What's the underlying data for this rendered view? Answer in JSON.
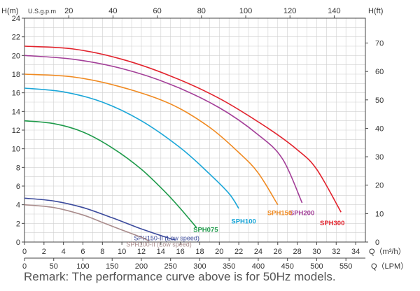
{
  "chart_data": {
    "type": "line",
    "title": "",
    "y_left": {
      "label": "H(m)",
      "range": [
        0,
        24
      ],
      "ticks": [
        0,
        2,
        4,
        6,
        8,
        10,
        12,
        14,
        16,
        18,
        20,
        22,
        24
      ]
    },
    "y_right": {
      "label": "H(ft)",
      "range": [
        0,
        78.74
      ],
      "ticks": [
        0,
        10,
        20,
        30,
        40,
        50,
        60,
        70
      ]
    },
    "x_top": {
      "label": "U.S.g.p.m",
      "ticks": [
        20,
        40,
        60,
        80,
        100,
        120,
        140
      ]
    },
    "x_bottom_1": {
      "label": "Q（m³/h）",
      "range": [
        0,
        35
      ],
      "ticks": [
        0,
        2,
        4,
        6,
        8,
        10,
        12,
        14,
        16,
        18,
        20,
        22,
        24,
        26,
        28,
        30,
        32,
        34
      ]
    },
    "x_bottom_2": {
      "label": "Q（LPM）",
      "ticks": [
        0,
        50,
        100,
        150,
        200,
        250,
        300,
        350,
        400,
        450,
        500,
        550
      ]
    },
    "grid": true,
    "series": [
      {
        "name": "SPH300",
        "color": "#e2232d",
        "points": [
          [
            0,
            21
          ],
          [
            5,
            20.7
          ],
          [
            10,
            19.6
          ],
          [
            15,
            17.8
          ],
          [
            20,
            15.4
          ],
          [
            25,
            12.2
          ],
          [
            28,
            9.9
          ],
          [
            30,
            7.8
          ],
          [
            32.5,
            3.2
          ]
        ],
        "label_at": [
          31.6,
          2.1
        ]
      },
      {
        "name": "SPH200",
        "color": "#a33f98",
        "points": [
          [
            0,
            20
          ],
          [
            5,
            19.6
          ],
          [
            10,
            18.6
          ],
          [
            15,
            16.9
          ],
          [
            20,
            14.4
          ],
          [
            24,
            11.5
          ],
          [
            26.5,
            8.9
          ],
          [
            28.5,
            4.2
          ]
        ],
        "label_at": [
          28.5,
          3.2
        ]
      },
      {
        "name": "SPH150",
        "color": "#f08a21",
        "points": [
          [
            0,
            18
          ],
          [
            5,
            17.7
          ],
          [
            10,
            16.6
          ],
          [
            15,
            14.8
          ],
          [
            19,
            12.3
          ],
          [
            22,
            9.6
          ],
          [
            24,
            7.4
          ],
          [
            26,
            4.0
          ]
        ],
        "label_at": [
          26.2,
          3.2
        ]
      },
      {
        "name": "SPH100",
        "color": "#1aa6d8",
        "points": [
          [
            0,
            16.5
          ],
          [
            4,
            16.1
          ],
          [
            8,
            15.0
          ],
          [
            12,
            13.0
          ],
          [
            16,
            10.1
          ],
          [
            19,
            7.3
          ],
          [
            21,
            5.2
          ],
          [
            22,
            3.6
          ]
        ],
        "label_at": [
          22.5,
          2.3
        ]
      },
      {
        "name": "SPH075",
        "color": "#1e9a4a",
        "points": [
          [
            0,
            13
          ],
          [
            3,
            12.7
          ],
          [
            6,
            11.8
          ],
          [
            9,
            10.1
          ],
          [
            12,
            7.8
          ],
          [
            14.5,
            5.3
          ],
          [
            16,
            3.6
          ],
          [
            17.7,
            1.5
          ]
        ],
        "label_at": [
          18.6,
          1.4
        ]
      },
      {
        "name": "SPH150-II (Low speed)",
        "color": "#3b4a9c",
        "points": [
          [
            0,
            4.7
          ],
          [
            3,
            4.4
          ],
          [
            6,
            3.7
          ],
          [
            9,
            2.6
          ],
          [
            11.5,
            1.6
          ],
          [
            14,
            0.7
          ],
          [
            15.5,
            0.2
          ]
        ],
        "label_at": [
          14.6,
          0.5
        ]
      },
      {
        "name": "SPH100-II (Low speed)",
        "color": "#a98c8c",
        "points": [
          [
            0,
            4
          ],
          [
            3,
            3.7
          ],
          [
            6,
            2.9
          ],
          [
            8,
            2.1
          ],
          [
            10,
            1.3
          ],
          [
            12,
            0.5
          ],
          [
            12.8,
            0.1
          ]
        ],
        "label_at": [
          13.8,
          -0.2
        ]
      }
    ]
  },
  "remark": "Remark: The performance curve above is for 50Hz models."
}
